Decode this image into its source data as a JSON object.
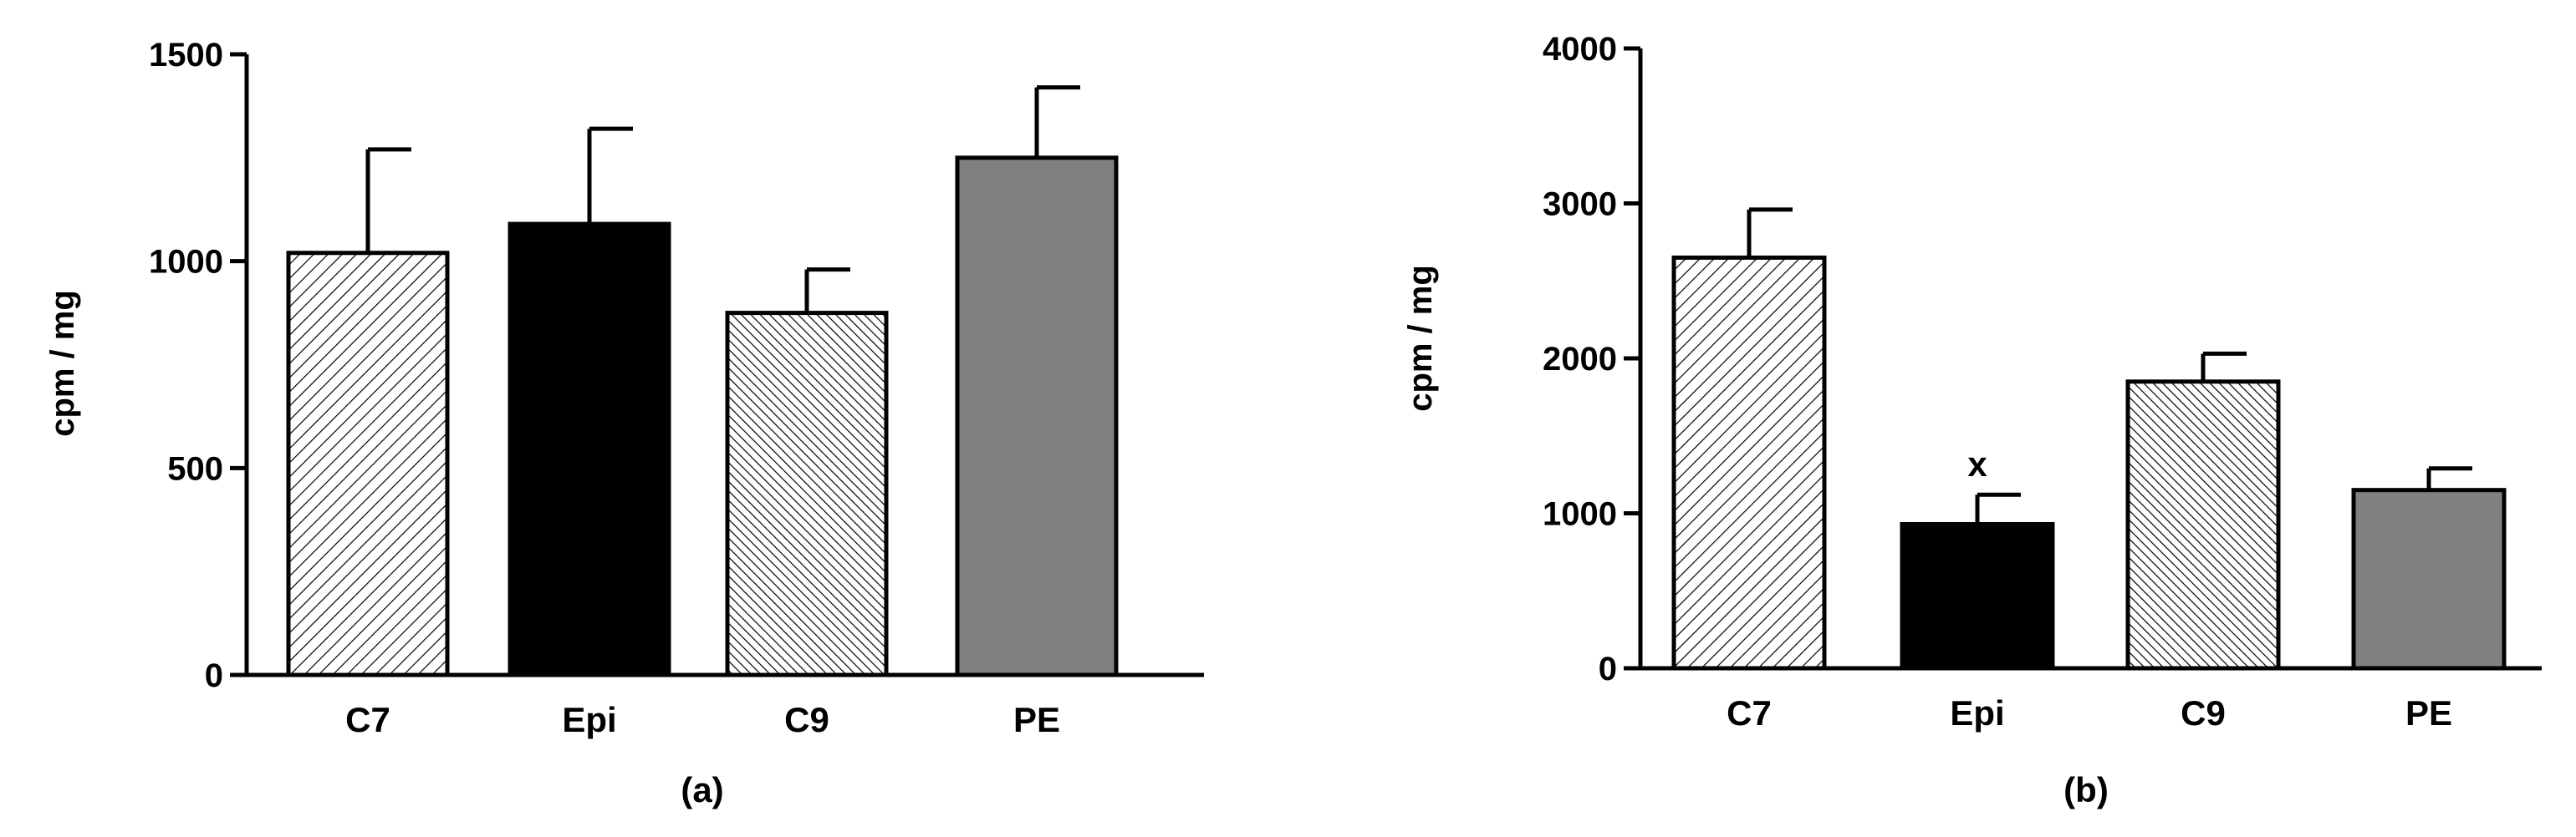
{
  "chart_data": [
    {
      "type": "bar",
      "panel_label": "(a)",
      "ylabel": "cpm / mg",
      "ylim": [
        0,
        1500
      ],
      "yticks": [
        0,
        500,
        1000,
        1500
      ],
      "categories": [
        "C7",
        "Epi",
        "C9",
        "PE"
      ],
      "values": [
        1020,
        1090,
        875,
        1250
      ],
      "errors": [
        250,
        230,
        105,
        170
      ],
      "annotations": [
        "",
        "",
        "",
        ""
      ],
      "fills": [
        "hatch-wide",
        "solid-black",
        "hatch-dense",
        "solid-gray"
      ],
      "grid": false,
      "legend": "none"
    },
    {
      "type": "bar",
      "panel_label": "(b)",
      "ylabel": "cpm / mg",
      "ylim": [
        0,
        4000
      ],
      "yticks": [
        0,
        1000,
        2000,
        3000,
        4000
      ],
      "categories": [
        "C7",
        "Epi",
        "C9",
        "PE"
      ],
      "values": [
        2650,
        930,
        1850,
        1150
      ],
      "errors": [
        310,
        190,
        180,
        140
      ],
      "annotations": [
        "",
        "x",
        "",
        ""
      ],
      "fills": [
        "hatch-wide",
        "solid-black",
        "hatch-dense",
        "solid-gray"
      ],
      "grid": false,
      "legend": "none"
    }
  ],
  "colors": {
    "axis": "#000000",
    "bar_black": "#000000",
    "bar_gray": "#808080",
    "hatch_line": "#000000",
    "background": "#ffffff"
  }
}
